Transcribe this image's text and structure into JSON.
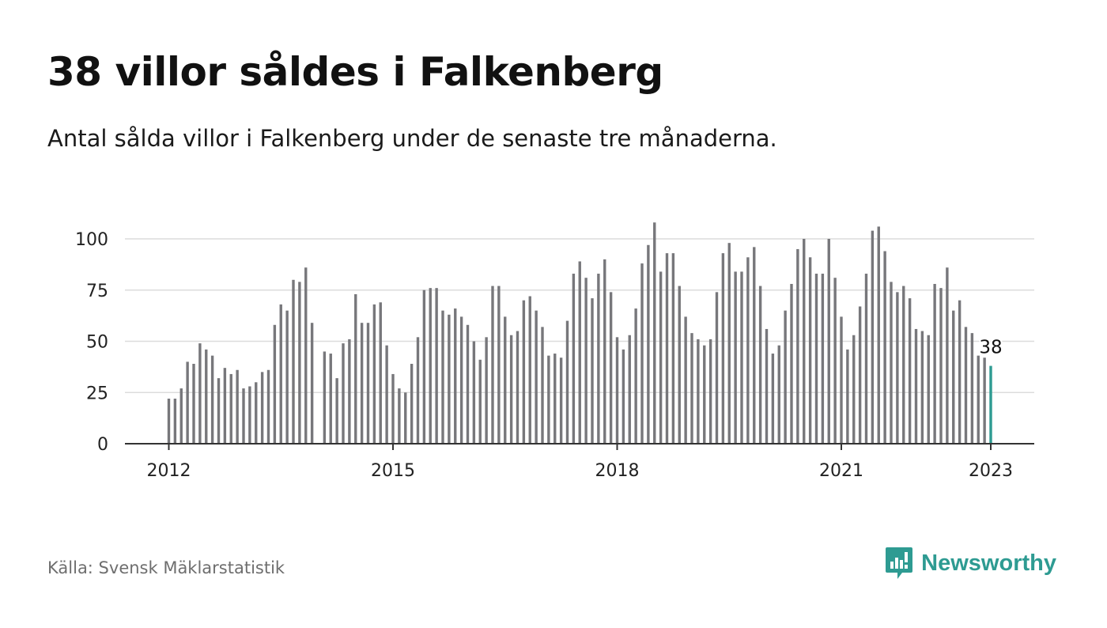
{
  "header": {
    "title": "38 villor såldes i Falkenberg",
    "subtitle": "Antal sålda villor i Falkenberg under de senaste tre månaderna."
  },
  "footer": {
    "source": "Källa: Svensk Mäklarstatistik",
    "brand": "Newsworthy",
    "brand_icon": "bar-chart-logo-icon"
  },
  "colors": {
    "bar": "#77777b",
    "highlight": "#2e9b92",
    "grid": "#dcdcdc",
    "axis": "#333333",
    "brand": "#2e9b92"
  },
  "chart_data": {
    "type": "bar",
    "title": "38 villor såldes i Falkenberg",
    "subtitle": "Antal sålda villor i Falkenberg under de senaste tre månaderna.",
    "xlabel": "",
    "ylabel": "",
    "ylim": [
      0,
      110
    ],
    "yticks": [
      0,
      25,
      50,
      75,
      100
    ],
    "xticks": [
      "2012",
      "2015",
      "2018",
      "2021",
      "2023"
    ],
    "grid": true,
    "x_start": "2012-01",
    "x_unit": "month",
    "highlight_label": "38",
    "values": [
      22,
      22,
      27,
      40,
      39,
      49,
      46,
      43,
      32,
      37,
      34,
      36,
      27,
      28,
      30,
      35,
      36,
      58,
      68,
      65,
      80,
      79,
      86,
      59,
      null,
      45,
      44,
      32,
      49,
      51,
      73,
      59,
      59,
      68,
      69,
      48,
      34,
      27,
      25,
      39,
      52,
      75,
      76,
      76,
      65,
      63,
      66,
      62,
      58,
      50,
      41,
      52,
      77,
      77,
      62,
      53,
      55,
      70,
      72,
      65,
      57,
      43,
      44,
      42,
      60,
      83,
      89,
      81,
      71,
      83,
      90,
      74,
      52,
      46,
      53,
      66,
      88,
      97,
      108,
      84,
      93,
      93,
      77,
      62,
      54,
      51,
      48,
      51,
      74,
      93,
      98,
      84,
      84,
      91,
      96,
      77,
      56,
      44,
      48,
      65,
      78,
      95,
      100,
      91,
      83,
      83,
      100,
      81,
      62,
      46,
      53,
      67,
      83,
      104,
      106,
      94,
      79,
      74,
      77,
      71,
      56,
      55,
      53,
      78,
      76,
      86,
      65,
      70,
      57,
      54,
      43,
      42,
      38
    ]
  }
}
